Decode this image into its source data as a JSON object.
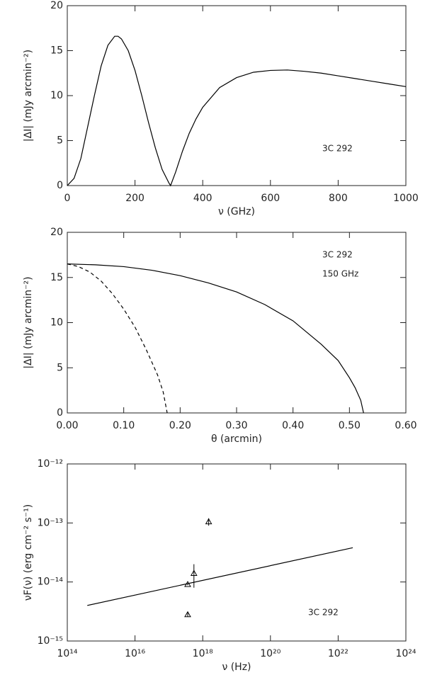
{
  "chart_data": [
    {
      "type": "line",
      "xlabel": "ν (GHz)",
      "ylabel": "|ΔI| (mJy arcmin⁻²)",
      "annotations": [
        "3C 292"
      ],
      "xlim": [
        0,
        1000
      ],
      "xticks": [
        0,
        200,
        400,
        600,
        800,
        1000
      ],
      "ylim": [
        0,
        20
      ],
      "yticks": [
        0,
        5,
        10,
        15,
        20
      ],
      "series": [
        {
          "color": "#000000",
          "linestyle": "solid",
          "x": [
            0,
            20,
            40,
            60,
            80,
            100,
            120,
            140,
            150,
            160,
            180,
            200,
            220,
            240,
            260,
            280,
            300,
            305,
            320,
            340,
            360,
            380,
            400,
            450,
            500,
            550,
            600,
            650,
            700,
            750,
            800,
            850,
            900,
            950,
            1000
          ],
          "values": [
            0,
            0.8,
            3,
            6.5,
            10,
            13.3,
            15.6,
            16.6,
            16.6,
            16.3,
            15,
            12.8,
            10,
            7,
            4.2,
            1.8,
            0.3,
            0,
            1.5,
            3.8,
            5.8,
            7.4,
            8.7,
            10.9,
            12,
            12.6,
            12.8,
            12.85,
            12.7,
            12.5,
            12.2,
            11.9,
            11.6,
            11.3,
            11.0
          ]
        }
      ]
    },
    {
      "type": "line",
      "xlabel": "θ (arcmin)",
      "ylabel": "|ΔI| (mJy arcmin⁻²)",
      "annotations": [
        "3C 292",
        "150 GHz"
      ],
      "xlim": [
        0,
        0.6
      ],
      "xticks": [
        {
          "value": 0,
          "label": "0.00"
        },
        {
          "value": 0.1,
          "label": "0.10"
        },
        {
          "value": 0.2,
          "label": "0.20"
        },
        {
          "value": 0.3,
          "label": "0.30"
        },
        {
          "value": 0.4,
          "label": "0.40"
        },
        {
          "value": 0.5,
          "label": "0.50"
        },
        {
          "value": 0.6,
          "label": "0.60"
        }
      ],
      "ylim": [
        0,
        20
      ],
      "yticks": [
        0,
        5,
        10,
        15,
        20
      ],
      "series": [
        {
          "color": "#000000",
          "linestyle": "solid",
          "x": [
            0,
            0.05,
            0.1,
            0.15,
            0.2,
            0.25,
            0.3,
            0.35,
            0.4,
            0.45,
            0.48,
            0.5,
            0.51,
            0.52,
            0.525
          ],
          "values": [
            16.5,
            16.4,
            16.2,
            15.8,
            15.2,
            14.4,
            13.4,
            12.0,
            10.2,
            7.6,
            5.8,
            3.9,
            2.8,
            1.4,
            0
          ]
        },
        {
          "color": "#000000",
          "linestyle": "dashed",
          "x": [
            0,
            0.02,
            0.04,
            0.06,
            0.08,
            0.1,
            0.12,
            0.14,
            0.16,
            0.17,
            0.177
          ],
          "values": [
            16.5,
            16.2,
            15.6,
            14.6,
            13.2,
            11.5,
            9.5,
            7.0,
            4.2,
            2.3,
            0
          ]
        }
      ]
    },
    {
      "type": "line",
      "xlabel": "ν (Hz)",
      "ylabel": "νF(ν) (erg cm⁻² s⁻¹)",
      "annotations": [
        "3C 292"
      ],
      "xlog": true,
      "ylog": true,
      "xlim": [
        100000000000000.0,
        1e+24
      ],
      "xticks": [
        {
          "value": 100000000000000.0,
          "label": "10¹⁴"
        },
        {
          "value": 1e+16,
          "label": "10¹⁶"
        },
        {
          "value": 1e+18,
          "label": "10¹⁸"
        },
        {
          "value": 1e+20,
          "label": "10²⁰"
        },
        {
          "value": 1e+22,
          "label": "10²²"
        },
        {
          "value": 1e+24,
          "label": "10²⁴"
        }
      ],
      "ylim": [
        1e-15,
        1e-12
      ],
      "yticks": [
        {
          "value": 1e-15,
          "label": "10⁻¹⁵"
        },
        {
          "value": 1e-14,
          "label": "10⁻¹⁴"
        },
        {
          "value": 1e-13,
          "label": "10⁻¹³"
        },
        {
          "value": 1e-12,
          "label": "10⁻¹²"
        }
      ],
      "series": [
        {
          "color": "#000000",
          "linestyle": "solid",
          "x": [
            390000000000000.0,
            2.7e+22
          ],
          "values": [
            4e-15,
            3.8e-14
          ]
        },
        {
          "color": "#000000",
          "marker": "triangle",
          "x": [
            3.6e+17,
            3.6e+17,
            5.5e+17,
            1.5e+18
          ],
          "values": [
            2.8e-15,
            9.1e-15,
            1.4e-14,
            1.05e-13
          ],
          "errors": [
            2e-16,
            3e-16,
            6e-15,
            1.5e-14
          ]
        }
      ]
    }
  ]
}
